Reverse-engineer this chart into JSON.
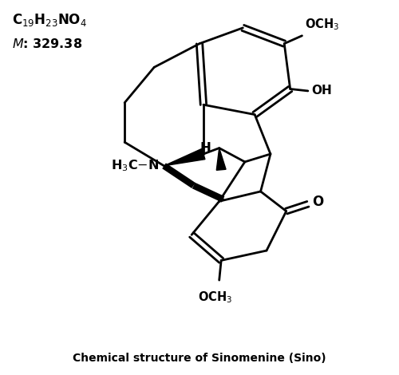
{
  "fig_width": 5.0,
  "fig_height": 4.7,
  "dpi": 100,
  "lw": 2.0,
  "blw": 6.0,
  "xlim": [
    0,
    10
  ],
  "ylim": [
    0,
    9.4
  ],
  "formula": "C$_{19}$H$_{23}$NO$_{4}$",
  "mw": "$\\it{M}$: 329.38",
  "caption": "Chemical structure of Sinomenine (Sino)"
}
